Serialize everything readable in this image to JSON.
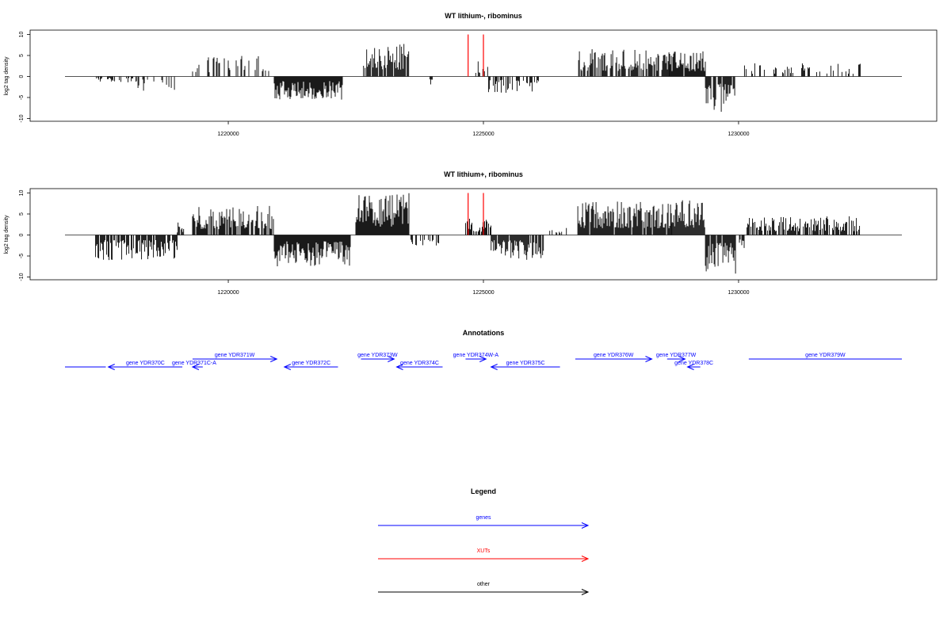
{
  "chart_data": [
    {
      "type": "bar",
      "title": "WT lithium-, ribominus",
      "xlabel": "",
      "ylabel": "log2 tag density",
      "xlim": [
        1216800,
        1233200
      ],
      "ylim": [
        -10,
        10
      ],
      "yticks": [
        -10,
        -5,
        0,
        5,
        10
      ],
      "xticks": [
        1220000,
        1225000,
        1230000
      ],
      "xtick_labels": [
        "1220000",
        "1225000",
        "1230000"
      ],
      "grid": false,
      "series_profile": [
        {
          "start": 1217400,
          "end": 1218200,
          "max": -1.5,
          "density": 0.25
        },
        {
          "start": 1218200,
          "end": 1219000,
          "max": -3.5,
          "density": 0.3
        },
        {
          "start": 1219300,
          "end": 1220900,
          "max": 5,
          "density": 0.3
        },
        {
          "start": 1220900,
          "end": 1222250,
          "max": -5.5,
          "density": 1.0
        },
        {
          "start": 1222650,
          "end": 1223550,
          "max": 8,
          "density": 0.9
        },
        {
          "start": 1223950,
          "end": 1224000,
          "max": -3.2,
          "density": 1.0
        },
        {
          "start": 1224850,
          "end": 1225100,
          "max": 4,
          "density": 0.6
        },
        {
          "start": 1225100,
          "end": 1226100,
          "max": -4,
          "density": 0.45
        },
        {
          "start": 1226850,
          "end": 1228650,
          "max": 6.5,
          "density": 0.7
        },
        {
          "start": 1228650,
          "end": 1229350,
          "max": 6,
          "density": 0.95
        },
        {
          "start": 1229350,
          "end": 1229950,
          "max": -8.5,
          "density": 0.9
        },
        {
          "start": 1230100,
          "end": 1232400,
          "max": 3.2,
          "density": 0.3
        }
      ],
      "markers": [
        {
          "x": 1224700,
          "color": "#ff0000"
        },
        {
          "x": 1225000,
          "color": "#ff0000"
        }
      ]
    },
    {
      "type": "bar",
      "title": "WT lithium+, ribominus",
      "xlabel": "",
      "ylabel": "log2 tag density",
      "xlim": [
        1216800,
        1233200
      ],
      "ylim": [
        -10,
        10
      ],
      "yticks": [
        -10,
        -5,
        0,
        5,
        10
      ],
      "xticks": [
        1220000,
        1225000,
        1230000
      ],
      "xtick_labels": [
        "1220000",
        "1225000",
        "1230000"
      ],
      "grid": false,
      "series_profile": [
        {
          "start": 1217400,
          "end": 1219000,
          "max": -6,
          "density": 0.8
        },
        {
          "start": 1219000,
          "end": 1219150,
          "max": 3,
          "density": 0.6
        },
        {
          "start": 1219300,
          "end": 1220900,
          "max": 7,
          "density": 0.8
        },
        {
          "start": 1220900,
          "end": 1222400,
          "max": -7.5,
          "density": 1.0
        },
        {
          "start": 1222500,
          "end": 1223550,
          "max": 10,
          "density": 1.0
        },
        {
          "start": 1223550,
          "end": 1224150,
          "max": -2.5,
          "density": 0.35
        },
        {
          "start": 1224650,
          "end": 1225150,
          "max": 4,
          "density": 0.8
        },
        {
          "start": 1225150,
          "end": 1226200,
          "max": -6,
          "density": 0.9
        },
        {
          "start": 1226300,
          "end": 1226650,
          "max": 2,
          "density": 0.4
        },
        {
          "start": 1226850,
          "end": 1228700,
          "max": 8,
          "density": 0.9
        },
        {
          "start": 1228700,
          "end": 1229350,
          "max": 8.5,
          "density": 1.0
        },
        {
          "start": 1229350,
          "end": 1229950,
          "max": -9.5,
          "density": 0.95
        },
        {
          "start": 1230000,
          "end": 1230150,
          "max": -4,
          "density": 0.6
        },
        {
          "start": 1230150,
          "end": 1232400,
          "max": 4.5,
          "density": 0.65
        }
      ],
      "markers": [
        {
          "x": 1224700,
          "color": "#ff0000"
        },
        {
          "x": 1225000,
          "color": "#ff0000"
        }
      ]
    }
  ],
  "annotations": {
    "title": "Annotations",
    "genes": [
      {
        "label": "",
        "start": 1216800,
        "end": 1217600,
        "strand": "none",
        "row": 1
      },
      {
        "label": "gene YDR370C",
        "start": 1217650,
        "end": 1219100,
        "strand": "-",
        "row": 1
      },
      {
        "label": "gene YDR371W",
        "start": 1219300,
        "end": 1220950,
        "strand": "+",
        "row": 0
      },
      {
        "label": "gene YDR371C-A",
        "start": 1219300,
        "end": 1219500,
        "strand": "-",
        "row": 1
      },
      {
        "label": "gene YDR372C",
        "start": 1221100,
        "end": 1222150,
        "strand": "-",
        "row": 1
      },
      {
        "label": "gene YDR373W",
        "start": 1222600,
        "end": 1223250,
        "strand": "+",
        "row": 0
      },
      {
        "label": "gene YDR374C",
        "start": 1223300,
        "end": 1224200,
        "strand": "-",
        "row": 1
      },
      {
        "label": "gene YDR374W-A",
        "start": 1224650,
        "end": 1225050,
        "strand": "+",
        "row": 0
      },
      {
        "label": "gene YDR375C",
        "start": 1225150,
        "end": 1226500,
        "strand": "-",
        "row": 1
      },
      {
        "label": "gene YDR376W",
        "start": 1226800,
        "end": 1228300,
        "strand": "+",
        "row": 0
      },
      {
        "label": "gene YDR377W",
        "start": 1228600,
        "end": 1228950,
        "strand": "+",
        "row": 0
      },
      {
        "label": "gene YDR378C",
        "start": 1229000,
        "end": 1229250,
        "strand": "-",
        "row": 1
      },
      {
        "label": "gene YDR379W",
        "start": 1230200,
        "end": 1233200,
        "strand": "none",
        "row": 0
      }
    ]
  },
  "legend": {
    "title": "Legend",
    "items": [
      {
        "label": "genes",
        "color": "#0000ff"
      },
      {
        "label": "XUTs",
        "color": "#ff0000"
      },
      {
        "label": "other",
        "color": "#000000"
      }
    ]
  }
}
